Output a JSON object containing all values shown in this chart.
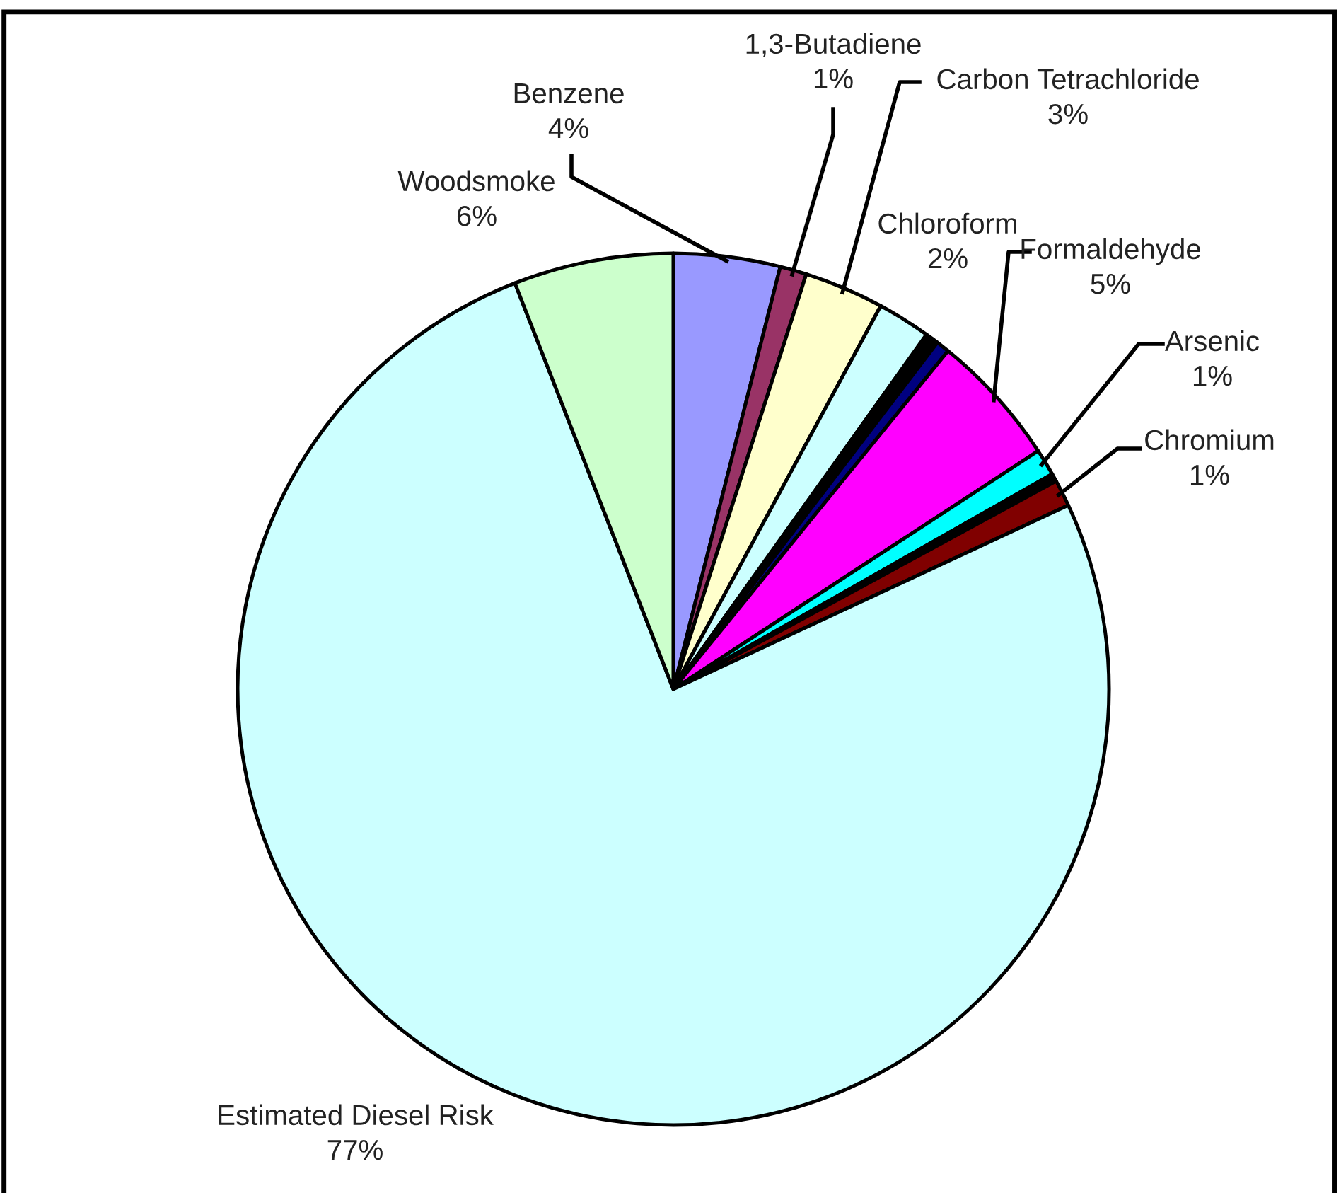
{
  "chart_data": {
    "type": "pie",
    "categories": [
      "Benzene",
      "1,3-Butadiene",
      "Carbon Tetrachloride",
      "Chloroform",
      null,
      null,
      "Formaldehyde",
      "Arsenic",
      null,
      "Chromium",
      "Estimated Diesel Risk",
      "Woodsmoke"
    ],
    "values": [
      4,
      1,
      3,
      2,
      0.5,
      0.5,
      5,
      1,
      0.3,
      1,
      77,
      6
    ],
    "colors": [
      "#9999ff",
      "#993366",
      "#ffffcc",
      "#ccffff",
      "#000000",
      "#000080",
      "#ff00ff",
      "#00ffff",
      "#000000",
      "#800000",
      "#ccffff",
      "#ccffcc"
    ],
    "value_labels": [
      "4%",
      "1%",
      "3%",
      "2%",
      null,
      null,
      "5%",
      "1%",
      null,
      "1%",
      "77%",
      "6%"
    ],
    "legend": false
  }
}
